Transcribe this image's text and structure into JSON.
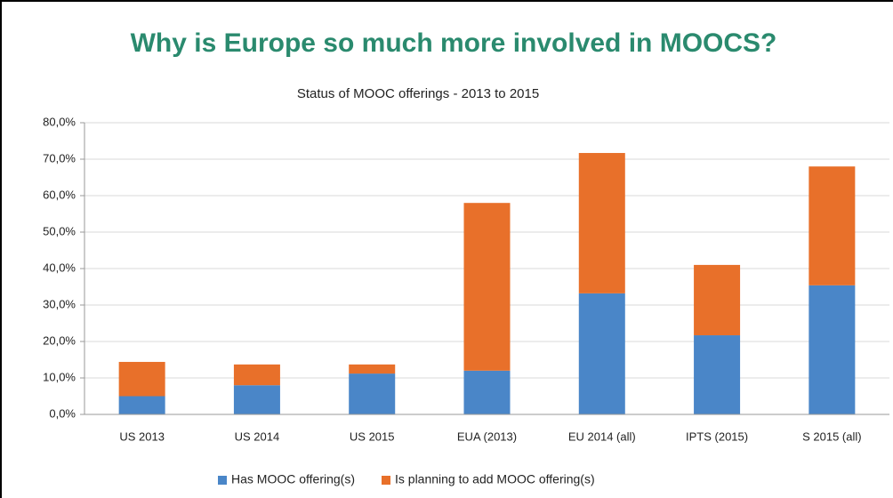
{
  "chart_data": {
    "type": "stacked_bar",
    "heading": "Why is Europe so much more involved in MOOCS?",
    "title": "Status of MOOC offerings - 2013 to 2015",
    "categories": [
      "US 2013",
      "US 2014",
      "US 2015",
      "EUA (2013)",
      "EU 2014 (all)",
      "IPTS (2015)",
      "S 2015 (all)"
    ],
    "series": [
      {
        "name": "Has MOOC offering(s)",
        "color": "#4a86c8",
        "values": [
          5.0,
          8.0,
          11.2,
          12.0,
          33.2,
          21.7,
          35.4
        ]
      },
      {
        "name": "Is planning to add MOOC offering(s)",
        "color": "#e8702a",
        "values": [
          9.4,
          5.7,
          2.5,
          46.0,
          38.5,
          19.3,
          32.6
        ]
      }
    ],
    "ylim": [
      0,
      80
    ],
    "yticks": [
      {
        "value": 0,
        "label": "0,0%"
      },
      {
        "value": 10,
        "label": "10,0%"
      },
      {
        "value": 20,
        "label": "20,0%"
      },
      {
        "value": 30,
        "label": "30,0%"
      },
      {
        "value": 40,
        "label": "40,0%"
      },
      {
        "value": 50,
        "label": "50,0%"
      },
      {
        "value": 60,
        "label": "60,0%"
      },
      {
        "value": 70,
        "label": "70,0%"
      },
      {
        "value": 80,
        "label": "80,0%"
      }
    ],
    "grid": true,
    "legend": "bottom"
  }
}
